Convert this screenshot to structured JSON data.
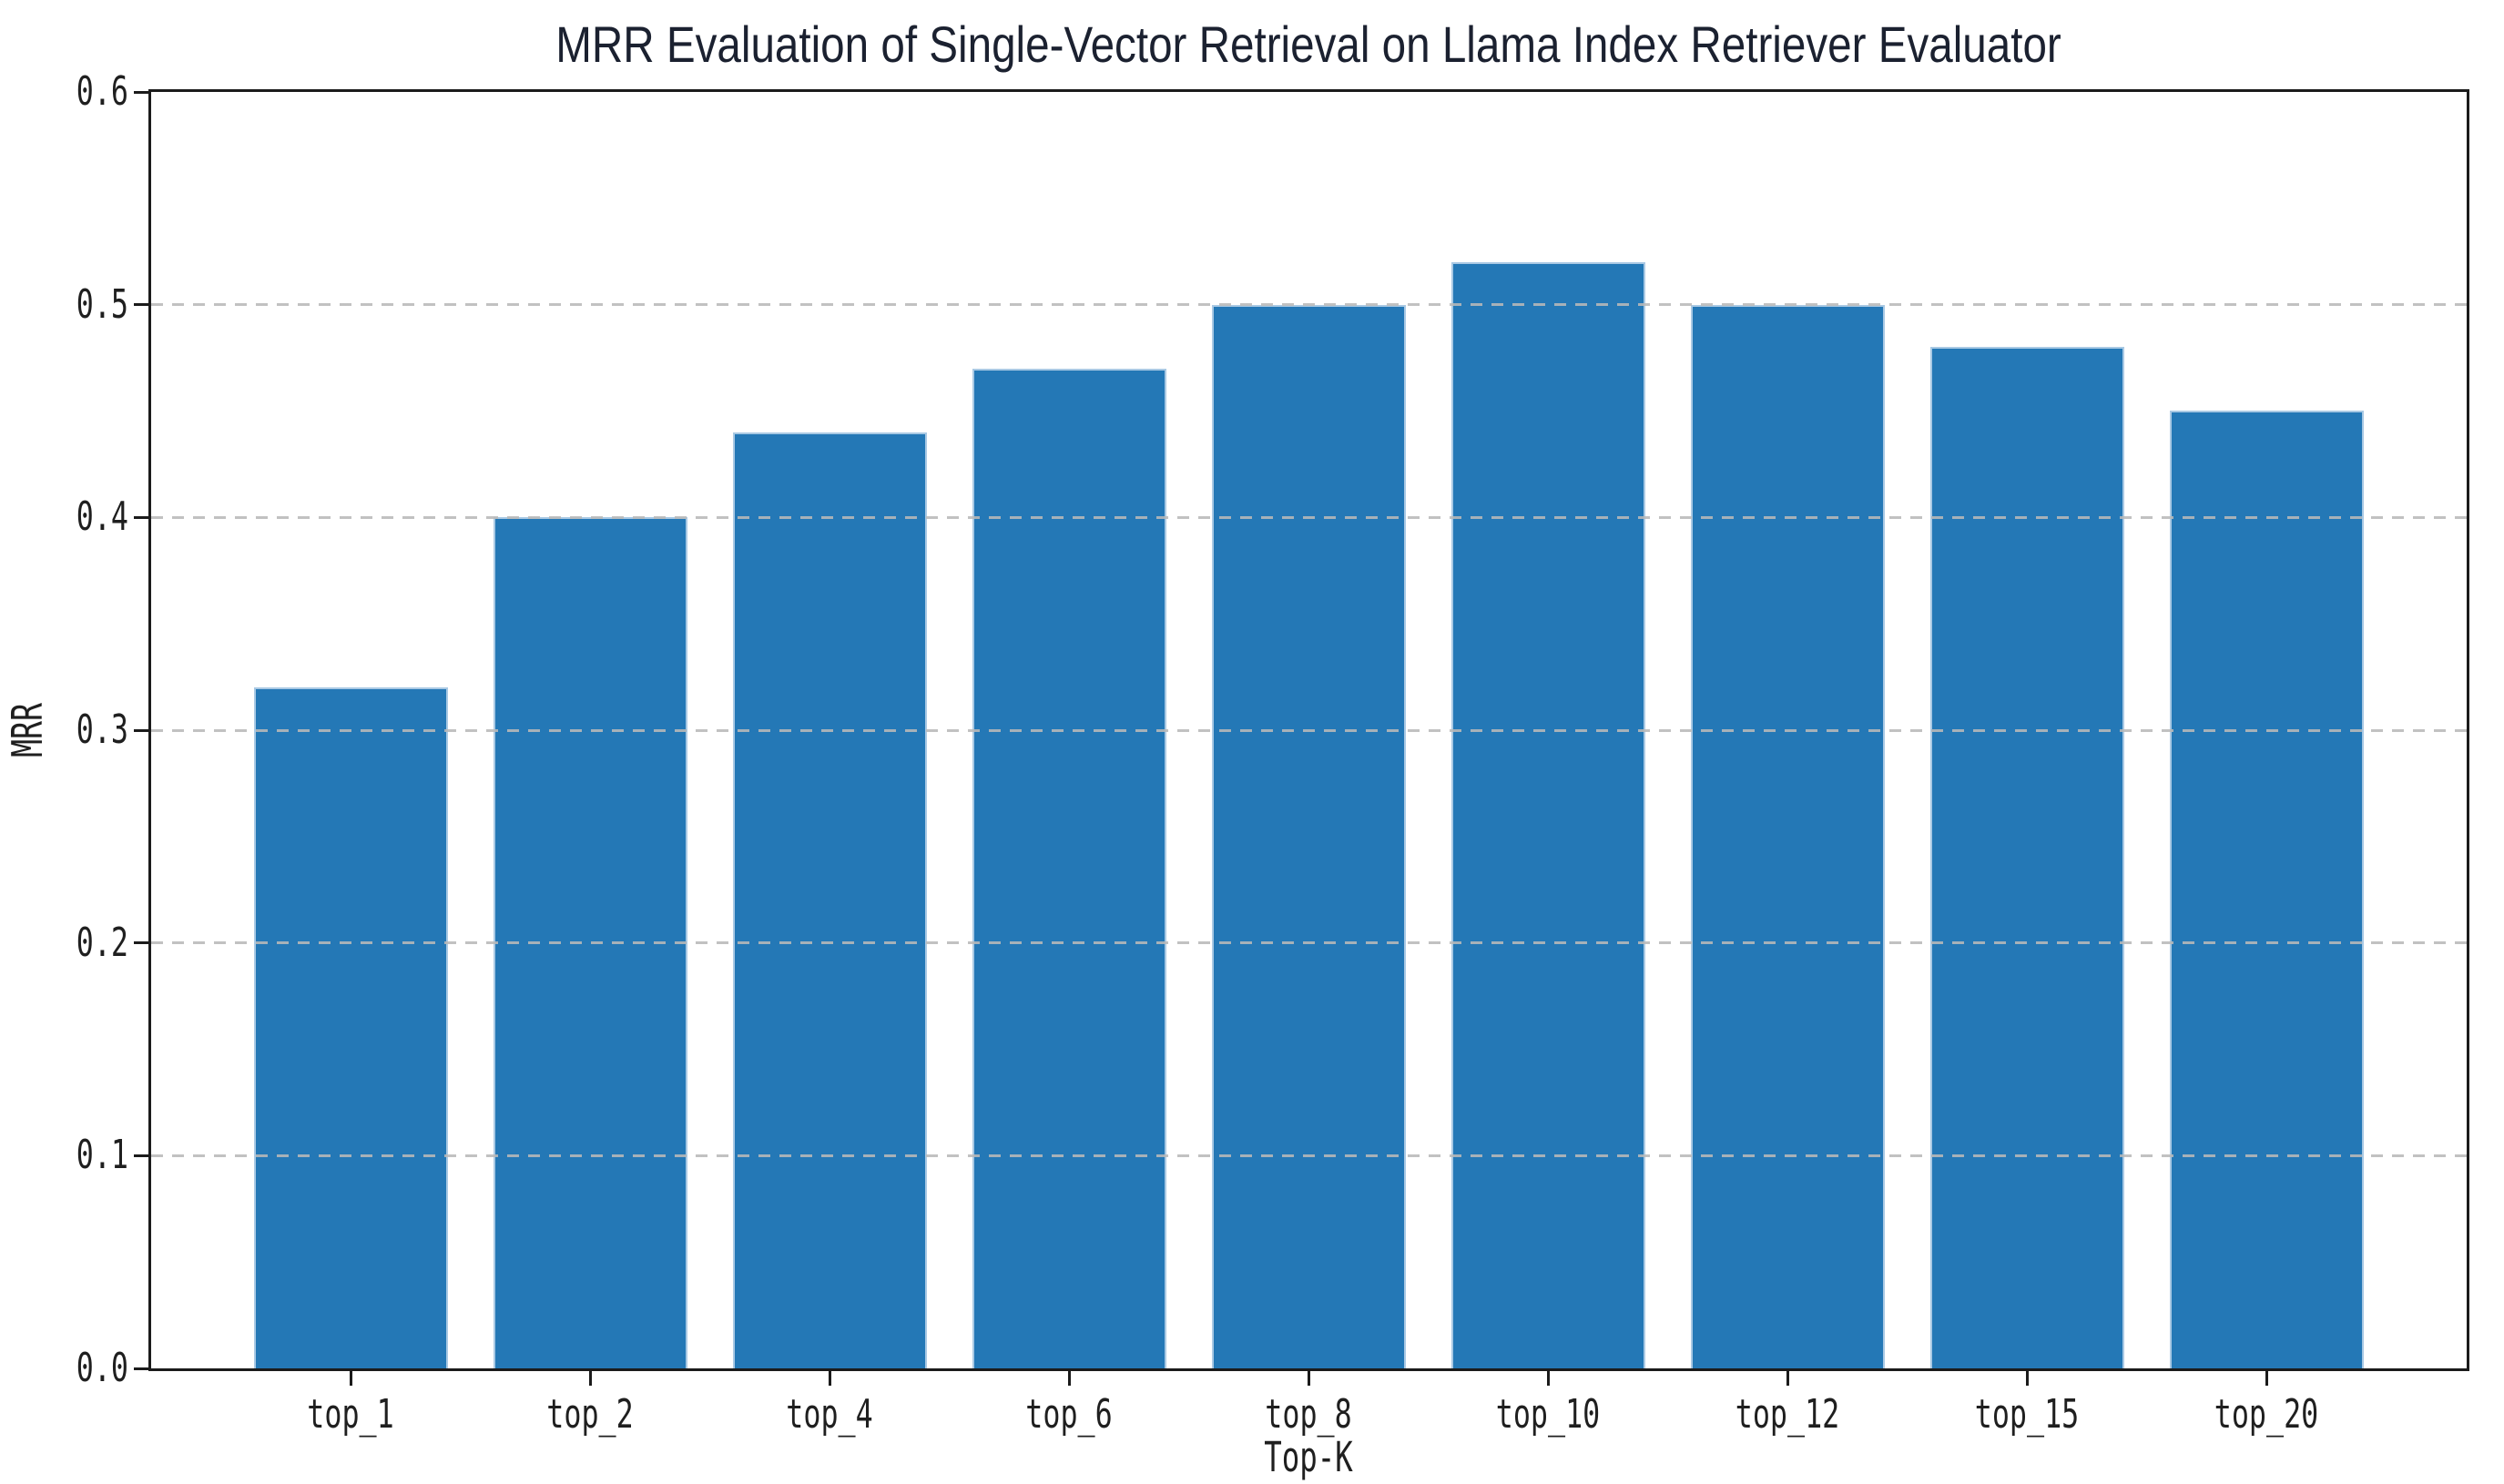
{
  "chart_data": {
    "type": "bar",
    "title": "MRR Evaluation of Single-Vector Retrieval on Llama Index Retriever Evaluator",
    "xlabel": "Top-K",
    "ylabel": "MRR",
    "categories": [
      "top_1",
      "top_2",
      "top_4",
      "top_6",
      "top_8",
      "top_10",
      "top_12",
      "top_15",
      "top_20"
    ],
    "values": [
      0.32,
      0.4,
      0.44,
      0.47,
      0.5,
      0.52,
      0.5,
      0.48,
      0.45
    ],
    "ylim": [
      0.0,
      0.6
    ],
    "ytick_labels": [
      "0.0",
      "0.1",
      "0.2",
      "0.3",
      "0.4",
      "0.5",
      "0.6"
    ],
    "grid": "horizontal dashed, drawn above bars",
    "legend": "none",
    "colors": {
      "bar_fill": "#2478b6",
      "bar_edge": "#a9c9e4",
      "grid_line": "#b9b9b9",
      "spine": "#1b1b1b",
      "tick_text": "#1f1f1f",
      "title_text": "#1b2130",
      "background": "#ffffff"
    }
  }
}
